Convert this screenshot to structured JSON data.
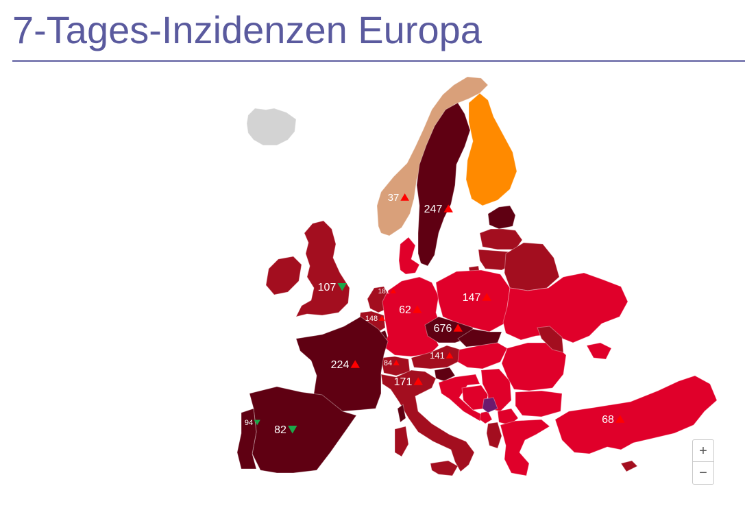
{
  "title": "7-Tages-Inzidenzen Europa",
  "colors": {
    "title": "#5a5a9e",
    "no_data": "#d3d3d3",
    "very_low": "#d9a07a",
    "low": "#ff8a00",
    "medium": "#e0002a",
    "high": "#a30e1f",
    "very_high": "#5f0012",
    "extreme": "#6c1a6e",
    "trend_up": "#ff0000",
    "trend_down": "#1ba84a"
  },
  "countries": [
    {
      "id": "iceland",
      "fill": "no_data"
    },
    {
      "id": "norway",
      "fill": "very_low",
      "label": "37",
      "trend": "up"
    },
    {
      "id": "sweden",
      "fill": "very_high",
      "label": "247",
      "trend": "up"
    },
    {
      "id": "finland",
      "fill": "low"
    },
    {
      "id": "estonia",
      "fill": "very_high"
    },
    {
      "id": "latvia",
      "fill": "high"
    },
    {
      "id": "lithuania",
      "fill": "high"
    },
    {
      "id": "belarus",
      "fill": "high"
    },
    {
      "id": "russia-kaliningrad",
      "fill": "high"
    },
    {
      "id": "ireland",
      "fill": "high"
    },
    {
      "id": "united-kingdom",
      "fill": "high",
      "label": "107",
      "trend": "down"
    },
    {
      "id": "denmark",
      "fill": "medium"
    },
    {
      "id": "netherlands",
      "fill": "high",
      "label": "181",
      "trend": "up"
    },
    {
      "id": "belgium",
      "fill": "high",
      "label": "148",
      "trend": "up"
    },
    {
      "id": "luxembourg",
      "fill": "very_high"
    },
    {
      "id": "germany",
      "fill": "medium",
      "label": "62",
      "trend": "up"
    },
    {
      "id": "poland",
      "fill": "medium",
      "label": "147",
      "trend": "up"
    },
    {
      "id": "ukraine",
      "fill": "medium"
    },
    {
      "id": "czechia",
      "fill": "very_high",
      "label": "676",
      "trend": "up"
    },
    {
      "id": "slovakia",
      "fill": "very_high"
    },
    {
      "id": "austria",
      "fill": "high",
      "label": "141",
      "trend": "up"
    },
    {
      "id": "hungary",
      "fill": "medium"
    },
    {
      "id": "slovenia",
      "fill": "very_high"
    },
    {
      "id": "switzerland",
      "fill": "high",
      "label": "84",
      "trend": "up"
    },
    {
      "id": "france",
      "fill": "very_high",
      "label": "224",
      "trend": "up"
    },
    {
      "id": "italy",
      "fill": "high",
      "label": "171",
      "trend": "up"
    },
    {
      "id": "spain",
      "fill": "very_high",
      "label": "82",
      "trend": "down"
    },
    {
      "id": "portugal",
      "fill": "very_high",
      "label": "94",
      "trend": "down"
    },
    {
      "id": "croatia",
      "fill": "medium"
    },
    {
      "id": "bosnia",
      "fill": "medium"
    },
    {
      "id": "serbia",
      "fill": "medium"
    },
    {
      "id": "montenegro",
      "fill": "medium"
    },
    {
      "id": "kosovo",
      "fill": "extreme"
    },
    {
      "id": "albania",
      "fill": "high"
    },
    {
      "id": "north-macedonia",
      "fill": "medium"
    },
    {
      "id": "romania",
      "fill": "medium"
    },
    {
      "id": "moldova",
      "fill": "high"
    },
    {
      "id": "bulgaria",
      "fill": "medium"
    },
    {
      "id": "greece",
      "fill": "medium"
    },
    {
      "id": "turkey",
      "fill": "medium",
      "label": "68",
      "trend": "up"
    },
    {
      "id": "crimea",
      "fill": "medium"
    },
    {
      "id": "cyprus",
      "fill": "high"
    },
    {
      "id": "corsica",
      "fill": "very_high"
    },
    {
      "id": "sardinia",
      "fill": "high"
    },
    {
      "id": "sicily",
      "fill": "high"
    }
  ],
  "zoom": {
    "in_label": "+",
    "out_label": "−"
  }
}
